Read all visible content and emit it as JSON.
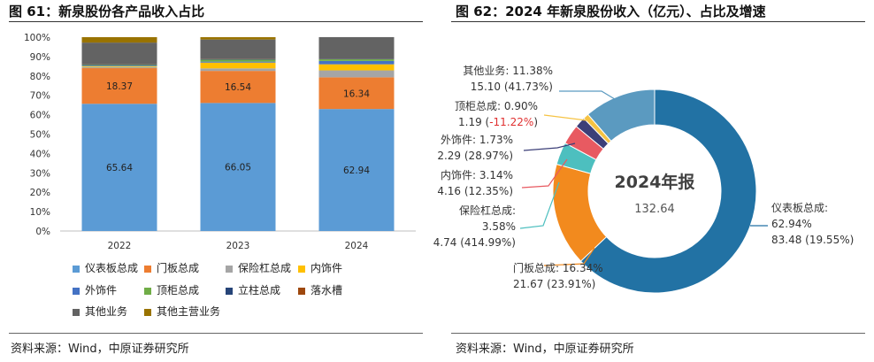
{
  "left": {
    "title": "图 61：新泉股份各产品收入占比",
    "source": "资料来源：Wind，中原证券研究所"
  },
  "right": {
    "title": "图 62：2024 年新泉股份收入（亿元）、占比及增速",
    "source": "资料来源：Wind，中原证券研究所"
  },
  "chart_data": [
    {
      "type": "bar",
      "stacked": true,
      "categories": [
        "2022",
        "2023",
        "2024"
      ],
      "y_ticks": [
        "0%",
        "10%",
        "20%",
        "30%",
        "40%",
        "50%",
        "60%",
        "70%",
        "80%",
        "90%",
        "100%"
      ],
      "ylim": [
        0,
        100
      ],
      "series": [
        {
          "name": "仪表板总成",
          "color": "#5b9bd5",
          "values": [
            65.64,
            66.05,
            62.94
          ],
          "labels": [
            "65.64",
            "66.05",
            "62.94"
          ]
        },
        {
          "name": "门板总成",
          "color": "#ed7d31",
          "values": [
            18.37,
            16.54,
            16.34
          ],
          "labels": [
            "18.37",
            "16.54",
            "16.34"
          ]
        },
        {
          "name": "保险杠总成",
          "color": "#a5a5a5",
          "values": [
            0.6,
            1.3,
            3.58
          ]
        },
        {
          "name": "内饰件",
          "color": "#ffc000",
          "values": [
            0.4,
            3.0,
            3.14
          ]
        },
        {
          "name": "外饰件",
          "color": "#4472c4",
          "values": [
            0.3,
            0.5,
            1.73
          ]
        },
        {
          "name": "顶柜总成",
          "color": "#70ad47",
          "values": [
            0.3,
            1.0,
            0.9
          ]
        },
        {
          "name": "立柱总成",
          "color": "#264478",
          "values": [
            0.3,
            0.3,
            0.3
          ]
        },
        {
          "name": "落水槽",
          "color": "#9e480e",
          "values": [
            0.1,
            0.1,
            0.1
          ]
        },
        {
          "name": "其他业务",
          "color": "#636363",
          "values": [
            11.2,
            10.0,
            11.0
          ]
        },
        {
          "name": "其他主营业务",
          "color": "#997300",
          "values": [
            2.79,
            1.21,
            0.0
          ]
        }
      ],
      "legend_position": "bottom"
    },
    {
      "type": "pie",
      "donut": true,
      "center_title": "2024年报",
      "center_value": "132.64",
      "slices": [
        {
          "name": "仪表板总成",
          "share": 62.94,
          "value": 83.48,
          "growth": "19.55%",
          "color": "#2272a4",
          "label_lines": [
            "仪表板总成:",
            "62.94%",
            "83.48 (19.55%)"
          ]
        },
        {
          "name": "门板总成",
          "share": 16.34,
          "value": 21.67,
          "growth": "23.91%",
          "color": "#f28a1e",
          "label_lines": [
            "门板总成: 16.34%",
            "21.67 (23.91%)"
          ]
        },
        {
          "name": "保险杠总成",
          "share": 3.58,
          "value": 4.74,
          "growth": "414.99%",
          "color": "#4dbfbf",
          "label_lines": [
            "保险杠总成:",
            "3.58%",
            "4.74 (414.99%)"
          ]
        },
        {
          "name": "内饰件",
          "share": 3.14,
          "value": 4.16,
          "growth": "12.35%",
          "color": "#e85a61",
          "label_lines": [
            "内饰件: 3.14%",
            "4.16 (12.35%)"
          ]
        },
        {
          "name": "外饰件",
          "share": 1.73,
          "value": 2.29,
          "growth": "28.97%",
          "color": "#3c3f78",
          "label_lines": [
            "外饰件: 1.73%",
            "2.29 (28.97%)"
          ]
        },
        {
          "name": "顶柜总成",
          "share": 0.9,
          "value": 1.19,
          "growth": "-11.22%",
          "color": "#f6c343",
          "label_lines": [
            "顶柜总成: 0.90%",
            "1.19 (",
            "-11.22%",
            ")"
          ]
        },
        {
          "name": "其他业务",
          "share": 11.38,
          "value": 15.1,
          "growth": "41.73%",
          "color": "#5b9ac0",
          "label_lines": [
            "其他业务: 11.38%",
            "15.10 (41.73%)"
          ]
        }
      ],
      "negative_color": "#e03030"
    }
  ]
}
